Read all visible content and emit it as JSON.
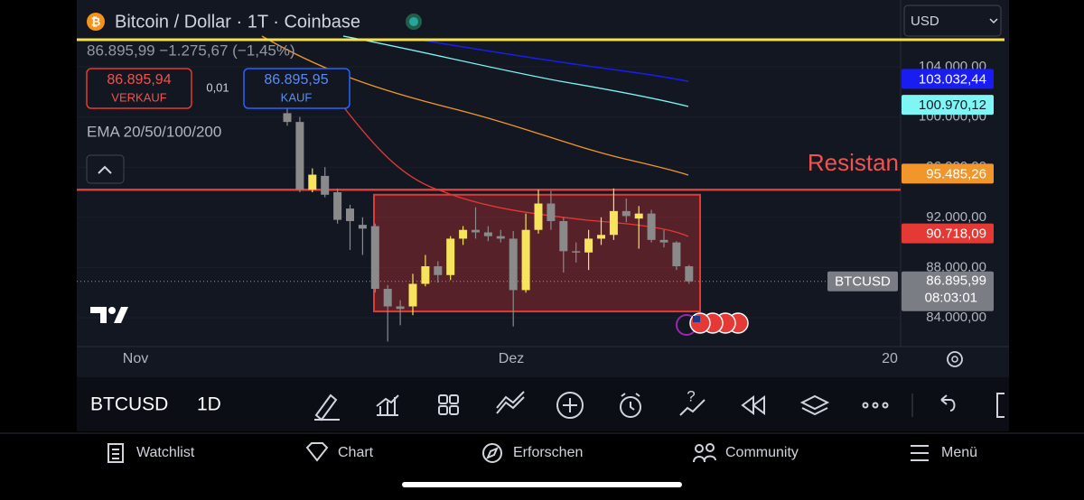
{
  "header": {
    "title": "Bitcoin / Dollar · 1T · Coinbase",
    "quote": "86.895,99 −1.275,67 (−1,45%)",
    "sell_price": "86.895,94",
    "sell_label": "VERKAUF",
    "spread": "0,01",
    "buy_price": "86.895,95",
    "buy_label": "KAUF",
    "indicator": "EMA 20/50/100/200",
    "currency": "USD"
  },
  "chart_data": {
    "type": "candlestick",
    "ylim": [
      81700,
      109320
    ],
    "yticks": [
      {
        "value": 104000,
        "label": "104.000,00"
      },
      {
        "value": 100000,
        "label": "100.000,00"
      },
      {
        "value": 96000,
        "label": "96.000,00"
      },
      {
        "value": 92000,
        "label": "92.000,00"
      },
      {
        "value": 88000,
        "label": "88.000,00"
      },
      {
        "value": 84000,
        "label": "84.000,00"
      }
    ],
    "x_labels": [
      "Nov",
      "Dez",
      "20"
    ],
    "open": [
      100300,
      99600,
      94200,
      95300,
      94000,
      92700,
      91400,
      91300,
      86300,
      84900,
      84900,
      86700,
      88100,
      87400,
      90300,
      91000,
      90800,
      90500,
      90300,
      86200,
      91000,
      93100,
      91700,
      89300,
      89200,
      90300,
      90600,
      92500,
      91900,
      92300,
      90200,
      90000,
      88100
    ],
    "high": [
      100700,
      100000,
      95900,
      96000,
      94300,
      93000,
      92000,
      91500,
      86600,
      85400,
      87500,
      89000,
      88500,
      90500,
      91300,
      92800,
      91300,
      91000,
      90900,
      92300,
      94200,
      94100,
      92000,
      90000,
      91000,
      92000,
      94300,
      93500,
      92900,
      92600,
      91000,
      90100,
      88200
    ],
    "low": [
      99300,
      94000,
      94000,
      93600,
      91500,
      89400,
      89000,
      86000,
      82100,
      83400,
      84200,
      86500,
      86800,
      87000,
      89800,
      90300,
      90100,
      90000,
      83300,
      86000,
      90700,
      91000,
      87600,
      88400,
      87800,
      89800,
      90200,
      91600,
      89500,
      90000,
      89600,
      87800,
      86700
    ],
    "close": [
      99600,
      94200,
      95400,
      93800,
      91800,
      91700,
      91100,
      86300,
      84900,
      84700,
      86700,
      88100,
      87400,
      90300,
      91000,
      90800,
      90500,
      90300,
      86200,
      91000,
      93100,
      91700,
      89300,
      89200,
      90300,
      90600,
      92500,
      92100,
      92300,
      90200,
      90000,
      88100,
      86896
    ],
    "up_color": "#f7e35c",
    "down_color": "#8a8a8a",
    "price_tags": [
      {
        "value": 103032.44,
        "label": "103.032,44",
        "color": "#1a1df2",
        "text_color": "#ffffff"
      },
      {
        "value": 100970.12,
        "label": "100.970,12",
        "color": "#7ef6f6",
        "text_color": "#0d1a26"
      },
      {
        "value": 95485.26,
        "label": "95.485,26",
        "color": "#f0962a",
        "text_color": "#ffffff"
      },
      {
        "value": 90718.09,
        "label": "90.718,09",
        "color": "#e53935",
        "text_color": "#ffffff"
      }
    ],
    "last_price": {
      "symbol": "BTCUSD",
      "value": 86895.99,
      "label": "86.895,99",
      "countdown": "08:03:01"
    },
    "resistance": {
      "label": "Resistan",
      "value": 94200
    },
    "zone": {
      "top": 93800,
      "bottom": 84500
    }
  },
  "toolbar": {
    "symbol": "BTCUSD",
    "interval": "1D"
  },
  "nav": [
    "Watchlist",
    "Chart",
    "Erforschen",
    "Community",
    "Menü"
  ]
}
